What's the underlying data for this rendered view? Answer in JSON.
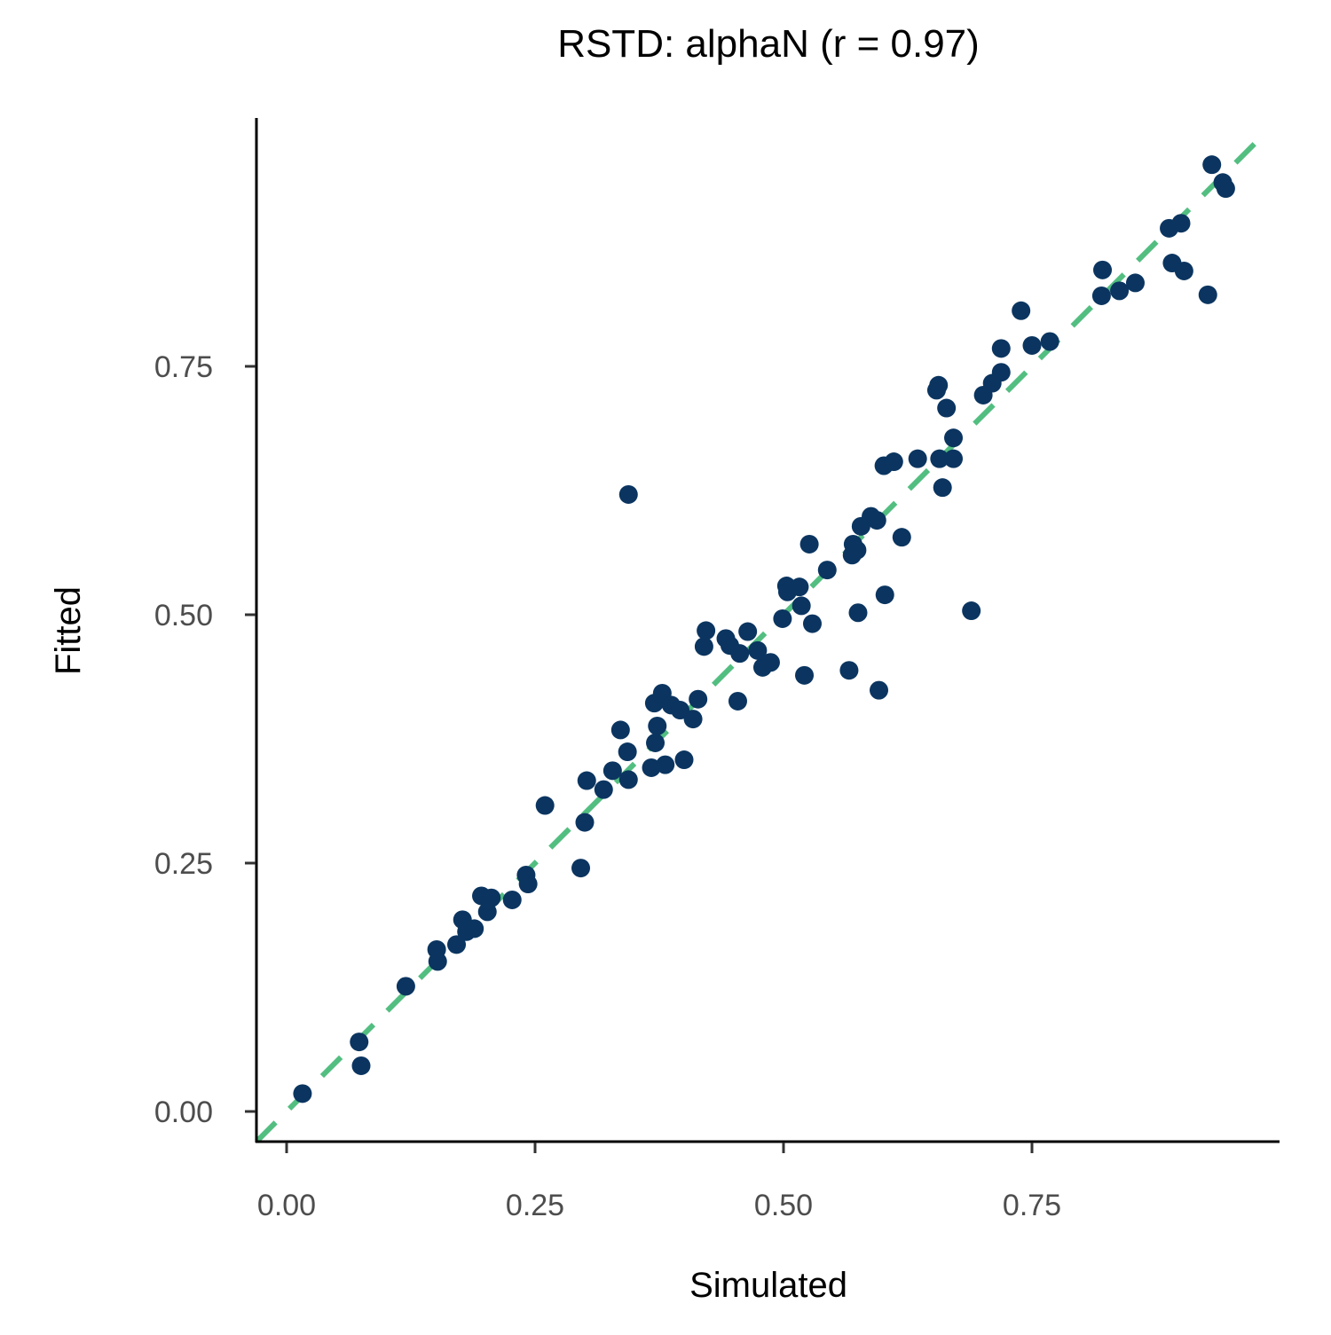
{
  "chart_data": {
    "type": "scatter",
    "title": "RSTD: alphaN (r = 0.97)",
    "xlabel": "Simulated",
    "ylabel": "Fitted",
    "xlim": [
      -0.03,
      1.0
    ],
    "ylim": [
      -0.03,
      1.0
    ],
    "xticks": [
      0,
      0.25,
      0.5,
      0.75
    ],
    "xtick_labels": [
      "0.00",
      "0.25",
      "0.50",
      "0.75"
    ],
    "yticks": [
      0,
      0.25,
      0.5,
      0.75
    ],
    "ytick_labels": [
      "0.00",
      "0.25",
      "0.50",
      "0.75"
    ],
    "grid": false,
    "reference_line": {
      "type": "identity",
      "style": "dashed",
      "color": "#52BE80"
    },
    "point_color": "#0B3560",
    "points": [
      [
        0.016,
        0.018
      ],
      [
        0.073,
        0.07
      ],
      [
        0.075,
        0.046
      ],
      [
        0.12,
        0.126
      ],
      [
        0.151,
        0.163
      ],
      [
        0.152,
        0.151
      ],
      [
        0.171,
        0.168
      ],
      [
        0.177,
        0.193
      ],
      [
        0.181,
        0.181
      ],
      [
        0.189,
        0.184
      ],
      [
        0.196,
        0.217
      ],
      [
        0.202,
        0.201
      ],
      [
        0.206,
        0.215
      ],
      [
        0.227,
        0.213
      ],
      [
        0.241,
        0.238
      ],
      [
        0.243,
        0.229
      ],
      [
        0.26,
        0.308
      ],
      [
        0.296,
        0.245
      ],
      [
        0.3,
        0.291
      ],
      [
        0.302,
        0.333
      ],
      [
        0.319,
        0.324
      ],
      [
        0.328,
        0.343
      ],
      [
        0.336,
        0.384
      ],
      [
        0.343,
        0.362
      ],
      [
        0.344,
        0.334
      ],
      [
        0.344,
        0.621
      ],
      [
        0.367,
        0.346
      ],
      [
        0.37,
        0.411
      ],
      [
        0.371,
        0.371
      ],
      [
        0.373,
        0.388
      ],
      [
        0.378,
        0.421
      ],
      [
        0.381,
        0.349
      ],
      [
        0.387,
        0.409
      ],
      [
        0.396,
        0.404
      ],
      [
        0.4,
        0.354
      ],
      [
        0.409,
        0.395
      ],
      [
        0.414,
        0.415
      ],
      [
        0.42,
        0.468
      ],
      [
        0.422,
        0.484
      ],
      [
        0.442,
        0.476
      ],
      [
        0.446,
        0.469
      ],
      [
        0.454,
        0.413
      ],
      [
        0.456,
        0.461
      ],
      [
        0.464,
        0.483
      ],
      [
        0.474,
        0.464
      ],
      [
        0.479,
        0.447
      ],
      [
        0.487,
        0.452
      ],
      [
        0.499,
        0.496
      ],
      [
        0.503,
        0.529
      ],
      [
        0.504,
        0.523
      ],
      [
        0.516,
        0.528
      ],
      [
        0.518,
        0.509
      ],
      [
        0.521,
        0.439
      ],
      [
        0.526,
        0.571
      ],
      [
        0.529,
        0.491
      ],
      [
        0.544,
        0.545
      ],
      [
        0.566,
        0.444
      ],
      [
        0.569,
        0.56
      ],
      [
        0.57,
        0.571
      ],
      [
        0.574,
        0.565
      ],
      [
        0.575,
        0.502
      ],
      [
        0.578,
        0.589
      ],
      [
        0.588,
        0.599
      ],
      [
        0.594,
        0.595
      ],
      [
        0.596,
        0.424
      ],
      [
        0.601,
        0.65
      ],
      [
        0.602,
        0.52
      ],
      [
        0.611,
        0.654
      ],
      [
        0.619,
        0.578
      ],
      [
        0.635,
        0.657
      ],
      [
        0.654,
        0.726
      ],
      [
        0.656,
        0.731
      ],
      [
        0.657,
        0.657
      ],
      [
        0.66,
        0.628
      ],
      [
        0.664,
        0.708
      ],
      [
        0.671,
        0.657
      ],
      [
        0.671,
        0.678
      ],
      [
        0.689,
        0.504
      ],
      [
        0.701,
        0.721
      ],
      [
        0.71,
        0.733
      ],
      [
        0.719,
        0.744
      ],
      [
        0.719,
        0.768
      ],
      [
        0.739,
        0.806
      ],
      [
        0.75,
        0.771
      ],
      [
        0.768,
        0.775
      ],
      [
        0.82,
        0.821
      ],
      [
        0.821,
        0.847
      ],
      [
        0.838,
        0.826
      ],
      [
        0.854,
        0.834
      ],
      [
        0.888,
        0.889
      ],
      [
        0.891,
        0.854
      ],
      [
        0.9,
        0.894
      ],
      [
        0.903,
        0.846
      ],
      [
        0.927,
        0.822
      ],
      [
        0.931,
        0.953
      ],
      [
        0.942,
        0.935
      ],
      [
        0.945,
        0.929
      ]
    ]
  }
}
